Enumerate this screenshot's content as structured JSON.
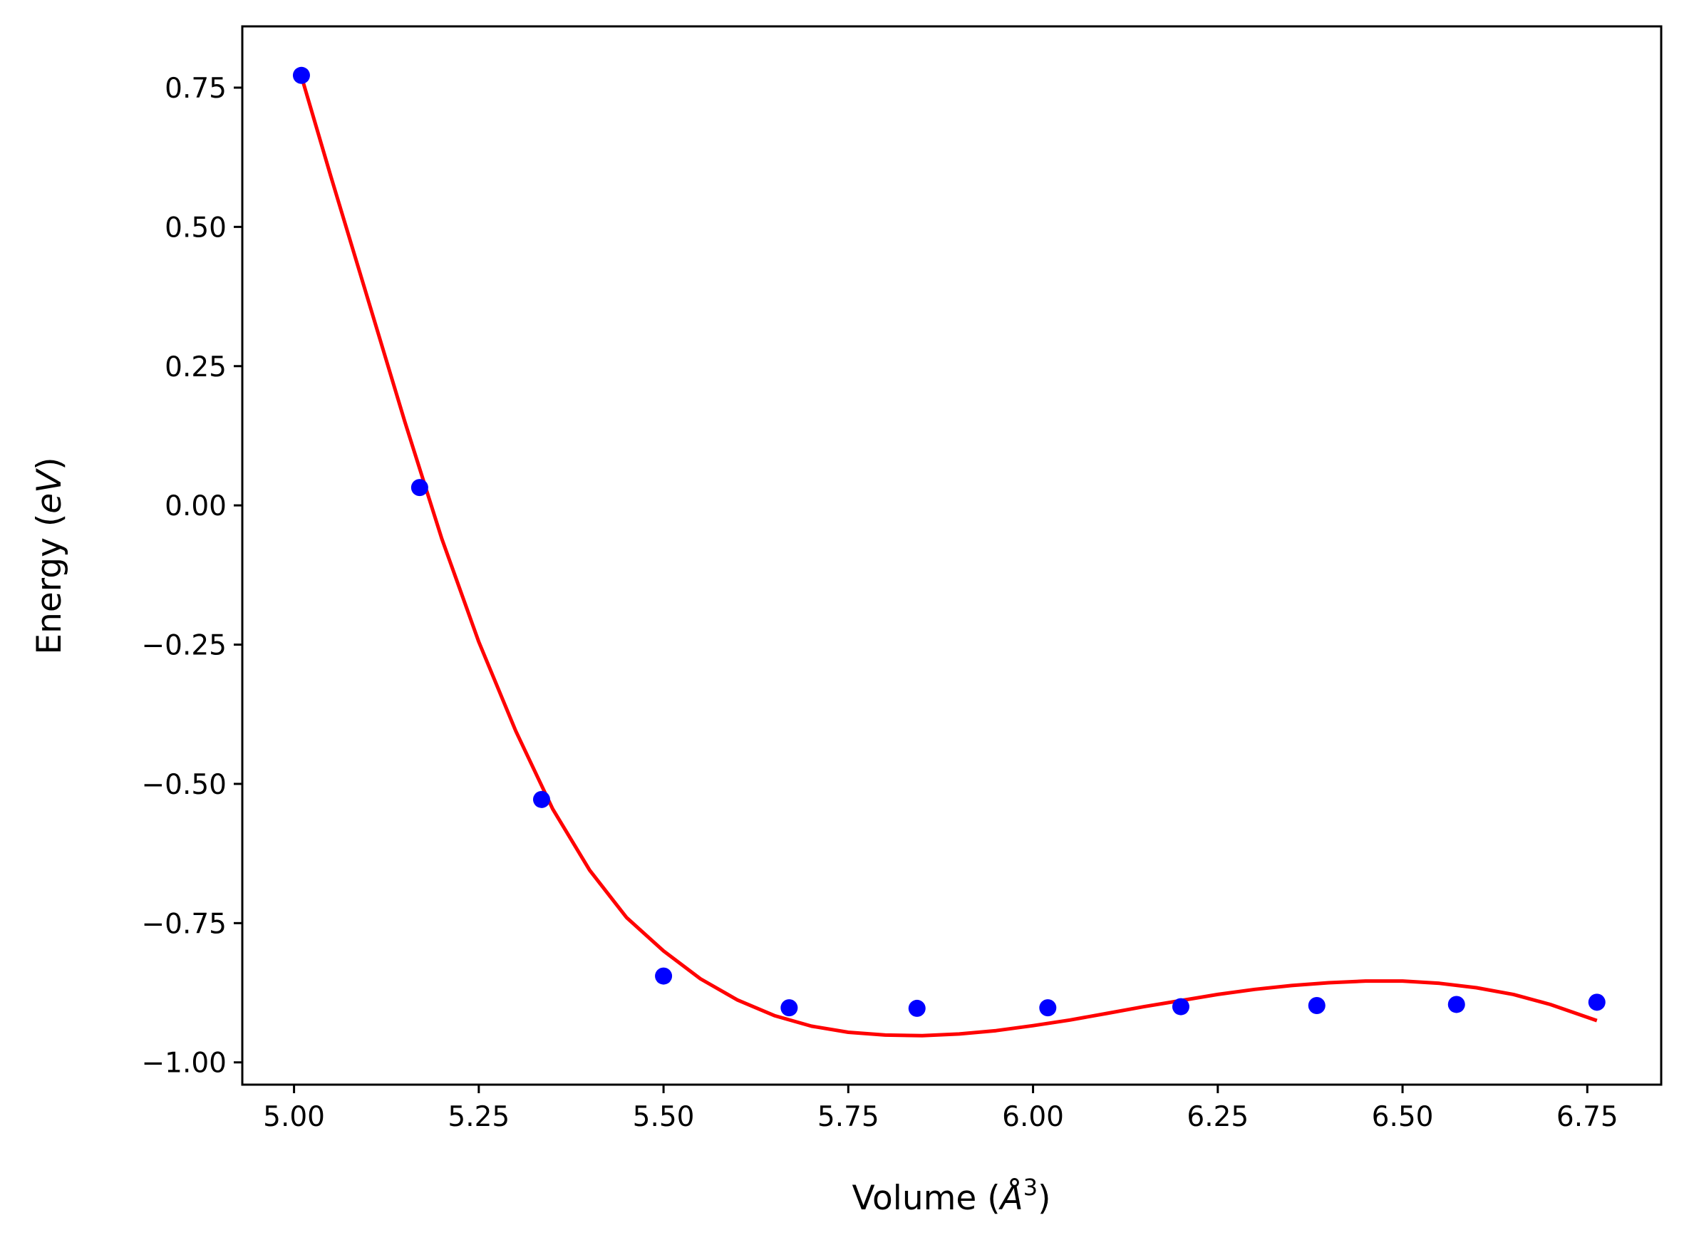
{
  "chart_data": {
    "type": "scatter",
    "xlabel": {
      "pre": "Volume (",
      "it": "Å",
      "sup": "3",
      "post": ")"
    },
    "ylabel": {
      "pre": "Energy (",
      "it": "eV",
      "post": ")"
    },
    "xlim": [
      4.93,
      6.85
    ],
    "ylim": [
      -1.04,
      0.86
    ],
    "xticks": [
      5.0,
      5.25,
      5.5,
      5.75,
      6.0,
      6.25,
      6.5,
      6.75
    ],
    "xtick_labels": [
      "5.00",
      "5.25",
      "5.50",
      "5.75",
      "6.00",
      "6.25",
      "6.50",
      "6.75"
    ],
    "yticks": [
      0.75,
      0.5,
      0.25,
      0.0,
      -0.25,
      -0.5,
      -0.75,
      -1.0
    ],
    "ytick_labels": [
      "0.75",
      "0.50",
      "0.25",
      "0.00",
      "−0.25",
      "−0.50",
      "−0.75",
      "−1.00"
    ],
    "grid": false,
    "series": [
      {
        "kind": "points",
        "color": "#0000ff",
        "x": [
          5.01,
          5.17,
          5.335,
          5.5,
          5.67,
          5.843,
          6.02,
          6.2,
          6.384,
          6.573,
          6.763
        ],
        "y": [
          0.772,
          0.032,
          -0.528,
          -0.845,
          -0.902,
          -0.903,
          -0.902,
          -0.9,
          -0.898,
          -0.896,
          -0.892
        ]
      },
      {
        "kind": "line",
        "color": "#ff0000",
        "x": [
          5.01,
          5.05,
          5.1,
          5.15,
          5.2,
          5.25,
          5.3,
          5.35,
          5.4,
          5.45,
          5.5,
          5.55,
          5.6,
          5.65,
          5.7,
          5.75,
          5.8,
          5.85,
          5.9,
          5.95,
          6.0,
          6.05,
          6.1,
          6.15,
          6.2,
          6.25,
          6.3,
          6.35,
          6.4,
          6.45,
          6.5,
          6.55,
          6.6,
          6.65,
          6.7,
          6.763
        ],
        "y": [
          0.77,
          0.59,
          0.37,
          0.15,
          -0.06,
          -0.245,
          -0.405,
          -0.545,
          -0.655,
          -0.74,
          -0.8,
          -0.85,
          -0.888,
          -0.916,
          -0.935,
          -0.946,
          -0.951,
          -0.952,
          -0.949,
          -0.943,
          -0.934,
          -0.924,
          -0.912,
          -0.9,
          -0.889,
          -0.878,
          -0.869,
          -0.862,
          -0.857,
          -0.854,
          -0.854,
          -0.858,
          -0.866,
          -0.878,
          -0.896,
          -0.925
        ]
      }
    ]
  }
}
